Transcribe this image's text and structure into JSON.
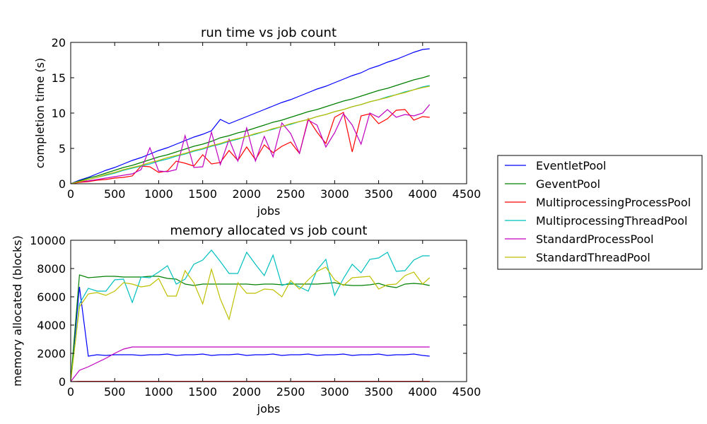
{
  "chart_data": [
    {
      "type": "line",
      "title": "run time vs job count",
      "xlabel": "jobs",
      "ylabel": "completion time (s)",
      "xlim": [
        0,
        4500
      ],
      "ylim": [
        0,
        20
      ],
      "xticks": [
        0,
        500,
        1000,
        1500,
        2000,
        2500,
        3000,
        3500,
        4000,
        4500
      ],
      "yticks": [
        0,
        5,
        10,
        15,
        20
      ],
      "grid": false,
      "x": [
        0,
        100,
        200,
        300,
        400,
        500,
        600,
        700,
        800,
        900,
        1000,
        1100,
        1200,
        1300,
        1400,
        1500,
        1600,
        1700,
        1800,
        1900,
        2000,
        2100,
        2200,
        2300,
        2400,
        2500,
        2600,
        2700,
        2800,
        2900,
        3000,
        3100,
        3200,
        3300,
        3400,
        3500,
        3600,
        3700,
        3800,
        3900,
        4000,
        4080
      ],
      "series": [
        {
          "name": "EventletPool",
          "color": "#0000ff",
          "values": [
            0,
            0.5,
            0.9,
            1.4,
            1.9,
            2.3,
            2.8,
            3.3,
            3.7,
            4.2,
            4.7,
            5.1,
            5.6,
            6.1,
            6.6,
            7.0,
            7.5,
            9.1,
            8.5,
            9.0,
            9.5,
            10.0,
            10.5,
            11.0,
            11.5,
            11.9,
            12.4,
            12.9,
            13.4,
            13.8,
            14.3,
            14.8,
            15.3,
            15.7,
            16.3,
            16.7,
            17.2,
            17.6,
            18.1,
            18.6,
            19.0,
            19.1
          ]
        },
        {
          "name": "GeventPool",
          "color": "#008000",
          "values": [
            0,
            0.4,
            0.8,
            1.1,
            1.5,
            1.9,
            2.3,
            2.6,
            3.0,
            3.4,
            3.8,
            4.1,
            4.5,
            4.9,
            5.3,
            5.6,
            6.0,
            6.5,
            6.8,
            7.2,
            7.5,
            7.9,
            8.3,
            8.7,
            9.0,
            9.4,
            9.8,
            10.2,
            10.5,
            10.9,
            11.3,
            11.7,
            12.0,
            12.4,
            12.8,
            13.2,
            13.5,
            13.9,
            14.3,
            14.7,
            15.0,
            15.3
          ]
        },
        {
          "name": "MultiprocessingProcessPool",
          "color": "#ff0000",
          "values": [
            0,
            0.2,
            0.3,
            0.5,
            0.6,
            0.8,
            0.9,
            1.1,
            2.5,
            2.4,
            1.6,
            1.8,
            3.2,
            2.9,
            2.5,
            4.1,
            2.8,
            3.0,
            4.7,
            3.3,
            5.2,
            3.4,
            5.5,
            4.4,
            5.3,
            5.9,
            4.3,
            9.2,
            7.3,
            5.7,
            9.4,
            10.1,
            4.5,
            9.6,
            9.9,
            8.5,
            9.2,
            10.4,
            10.5,
            9.0,
            9.5,
            9.4
          ]
        },
        {
          "name": "MultiprocessingThreadPool",
          "color": "#00bfbf",
          "values": [
            0,
            0.3,
            0.6,
            0.9,
            1.2,
            1.5,
            1.9,
            2.2,
            2.5,
            2.8,
            3.2,
            3.5,
            3.9,
            4.2,
            4.6,
            4.9,
            5.3,
            5.6,
            6.0,
            6.3,
            6.7,
            7.0,
            7.4,
            7.7,
            8.1,
            8.4,
            8.8,
            9.1,
            9.5,
            9.8,
            10.2,
            10.5,
            10.9,
            11.2,
            11.6,
            11.9,
            12.3,
            12.6,
            13.0,
            13.3,
            13.7,
            13.9
          ]
        },
        {
          "name": "StandardProcessPool",
          "color": "#bf00bf",
          "values": [
            0,
            0.3,
            0.4,
            0.6,
            0.8,
            1.0,
            1.2,
            1.4,
            2.0,
            5.1,
            1.8,
            1.7,
            2.0,
            6.8,
            2.3,
            2.4,
            7.3,
            2.7,
            6.3,
            3.2,
            7.9,
            3.2,
            6.7,
            3.8,
            8.6,
            7.1,
            4.3,
            9.0,
            8.3,
            5.2,
            7.2,
            9.9,
            8.3,
            5.6,
            10.0,
            9.4,
            10.5,
            9.4,
            9.8,
            9.6,
            10.0,
            11.2
          ]
        },
        {
          "name": "StandardThreadPool",
          "color": "#bfbf00",
          "values": [
            0,
            0.3,
            0.6,
            0.9,
            1.3,
            1.6,
            2.0,
            2.3,
            2.6,
            3.0,
            3.3,
            3.7,
            4.0,
            4.3,
            4.7,
            5.0,
            5.4,
            5.7,
            6.1,
            6.4,
            6.7,
            7.1,
            7.4,
            7.8,
            8.1,
            8.5,
            8.8,
            9.1,
            9.5,
            9.8,
            10.2,
            10.5,
            10.9,
            11.2,
            11.6,
            11.9,
            12.2,
            12.6,
            12.9,
            13.3,
            13.6,
            13.8
          ]
        }
      ]
    },
    {
      "type": "line",
      "title": "memory allocated vs job count",
      "xlabel": "jobs",
      "ylabel": "memory allocated (blocks)",
      "xlim": [
        0,
        4500
      ],
      "ylim": [
        0,
        10000
      ],
      "xticks": [
        0,
        500,
        1000,
        1500,
        2000,
        2500,
        3000,
        3500,
        4000,
        4500
      ],
      "yticks": [
        0,
        2000,
        4000,
        6000,
        8000,
        10000
      ],
      "grid": false,
      "x": [
        0,
        100,
        200,
        300,
        400,
        500,
        600,
        700,
        800,
        900,
        1000,
        1100,
        1200,
        1300,
        1400,
        1500,
        1600,
        1700,
        1800,
        1900,
        2000,
        2100,
        2200,
        2300,
        2400,
        2500,
        2600,
        2700,
        2800,
        2900,
        3000,
        3100,
        3200,
        3300,
        3400,
        3500,
        3600,
        3700,
        3800,
        3900,
        4000,
        4080
      ],
      "series": [
        {
          "name": "EventletPool",
          "color": "#0000ff",
          "values": [
            0,
            6700,
            1800,
            1900,
            1850,
            1900,
            1900,
            1900,
            1850,
            1900,
            1900,
            1950,
            1850,
            1900,
            1900,
            1950,
            1850,
            1900,
            1900,
            1950,
            1850,
            1900,
            1900,
            1950,
            1850,
            1900,
            1900,
            1950,
            1850,
            1900,
            1900,
            1950,
            1850,
            1900,
            1900,
            1950,
            1850,
            1900,
            1900,
            1950,
            1850,
            1800
          ]
        },
        {
          "name": "GeventPool",
          "color": "#008000",
          "values": [
            0,
            7550,
            7350,
            7400,
            7450,
            7450,
            7400,
            7400,
            7400,
            7450,
            7450,
            7300,
            7250,
            6900,
            6800,
            6900,
            6900,
            6900,
            6900,
            6900,
            6900,
            6850,
            6900,
            6900,
            6850,
            6900,
            6900,
            6900,
            6900,
            6950,
            7000,
            6850,
            6800,
            6800,
            6850,
            6950,
            6750,
            6650,
            6900,
            6950,
            6900,
            6800
          ]
        },
        {
          "name": "MultiprocessingProcessPool",
          "color": "#ff0000",
          "values": [
            0,
            20,
            20,
            20,
            20,
            20,
            20,
            20,
            20,
            20,
            20,
            20,
            20,
            20,
            20,
            20,
            20,
            20,
            20,
            20,
            20,
            20,
            20,
            20,
            20,
            20,
            20,
            20,
            20,
            20,
            20,
            20,
            20,
            20,
            20,
            20,
            20,
            20,
            20,
            20,
            20,
            20
          ]
        },
        {
          "name": "MultiprocessingThreadPool",
          "color": "#00bfbf",
          "values": [
            0,
            5500,
            6600,
            6400,
            6400,
            7200,
            7250,
            5600,
            7400,
            7350,
            7750,
            8200,
            6900,
            7250,
            8300,
            8600,
            9300,
            8500,
            7650,
            7650,
            9150,
            8300,
            7500,
            8950,
            6800,
            7000,
            6700,
            6400,
            7900,
            8650,
            6100,
            7300,
            8300,
            7700,
            8650,
            8750,
            9150,
            7800,
            7850,
            8600,
            8900,
            8900
          ]
        },
        {
          "name": "StandardProcessPool",
          "color": "#bf00bf",
          "values": [
            0,
            800,
            1050,
            1350,
            1650,
            2000,
            2300,
            2450,
            2450,
            2450,
            2450,
            2450,
            2450,
            2450,
            2450,
            2450,
            2450,
            2450,
            2450,
            2450,
            2450,
            2450,
            2450,
            2450,
            2450,
            2450,
            2450,
            2450,
            2450,
            2450,
            2450,
            2450,
            2450,
            2450,
            2450,
            2450,
            2450,
            2450,
            2450,
            2450,
            2450,
            2450
          ]
        },
        {
          "name": "StandardThreadPool",
          "color": "#bfbf00",
          "values": [
            0,
            5300,
            6200,
            6300,
            6100,
            6400,
            7000,
            6900,
            6700,
            6800,
            7300,
            6050,
            6050,
            7850,
            7000,
            5500,
            7950,
            5850,
            4400,
            7000,
            6250,
            6250,
            6550,
            6500,
            6000,
            7150,
            6550,
            7200,
            7800,
            8100,
            7200,
            6800,
            7350,
            7400,
            7450,
            6550,
            6850,
            6900,
            7500,
            7750,
            6900,
            7350
          ]
        }
      ]
    }
  ]
}
